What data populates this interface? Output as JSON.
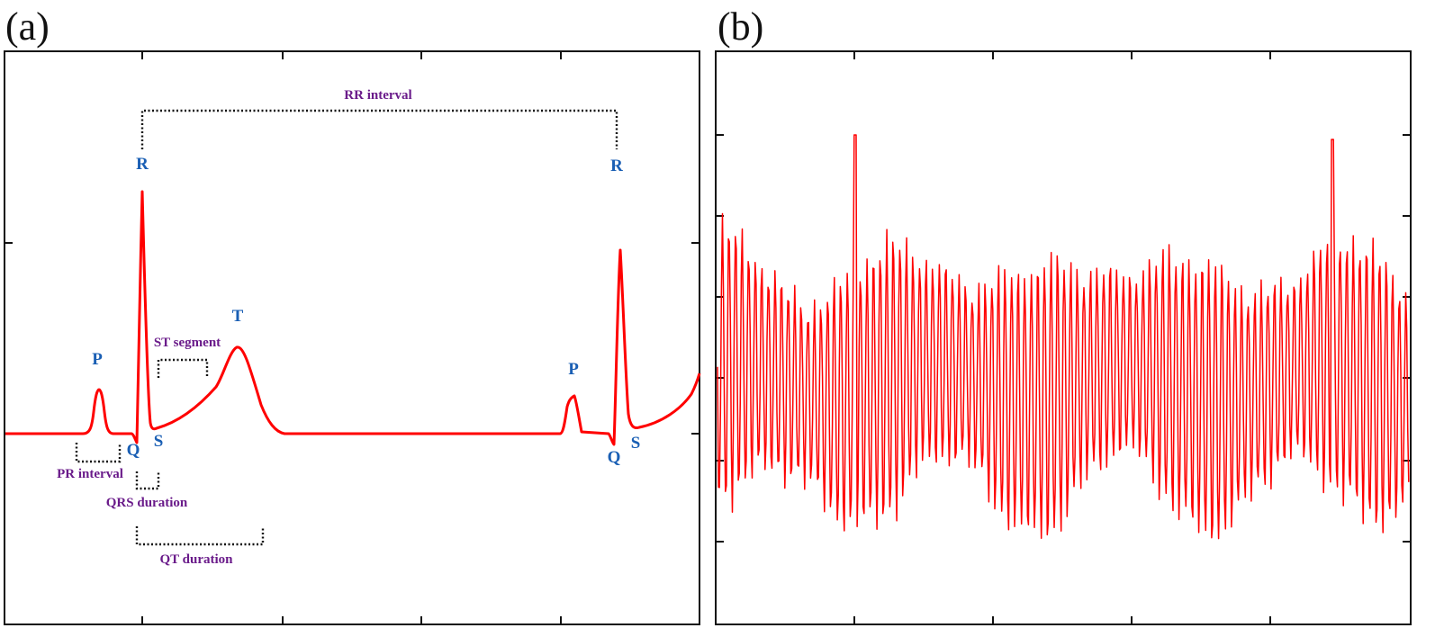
{
  "panels": {
    "a": {
      "label": "(a)",
      "waves": {
        "P1": "P",
        "Q1": "Q",
        "R1": "R",
        "S1": "S",
        "T": "T",
        "P2": "P",
        "Q2": "Q",
        "R2": "R",
        "S2": "S"
      },
      "intervals": {
        "rr": "RR interval",
        "st": "ST segment",
        "pr": "PR interval",
        "qrs": "QRS duration",
        "qt": "QT duration"
      }
    },
    "b": {
      "label": "(b)"
    }
  },
  "colors": {
    "signal": "#ff0000",
    "wave_label": "#1a5fb4",
    "interval_label": "#6a1b8a",
    "frame": "#111111"
  }
}
